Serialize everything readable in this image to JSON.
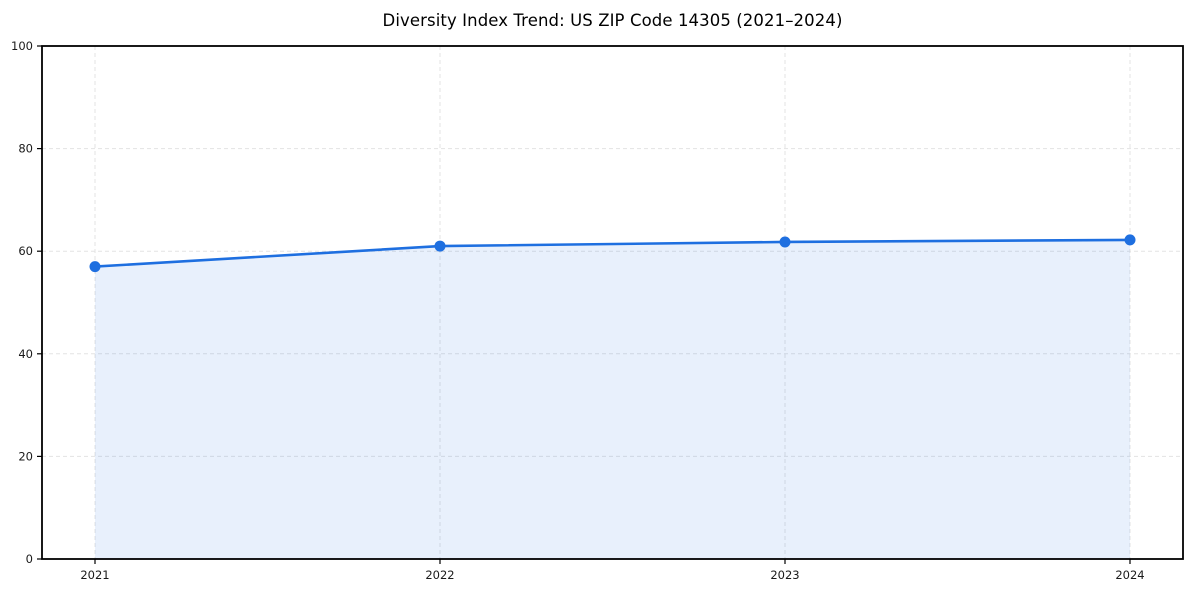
{
  "chart_data": {
    "type": "area",
    "title": "Diversity Index Trend: US ZIP Code 14305 (2021–2024)",
    "x": [
      "2021",
      "2022",
      "2023",
      "2024"
    ],
    "series": [
      {
        "name": "Diversity Index",
        "values": [
          57,
          61,
          61.8,
          62.2
        ]
      }
    ],
    "xlabel": "",
    "ylabel": "",
    "ylim": [
      0,
      100
    ],
    "yticks": [
      0,
      20,
      40,
      60,
      80,
      100
    ],
    "grid": true,
    "grid_style": "dashed",
    "legend": "none",
    "colors": {
      "line": "#1e6fe0",
      "marker": "#1e6fe0",
      "area_fill": "rgba(30,111,224,0.10)",
      "grid": "#e3e3e3",
      "axis": "#000000",
      "tick_text": "#1a1a1a",
      "title_text": "#000000",
      "background": "#ffffff"
    }
  }
}
